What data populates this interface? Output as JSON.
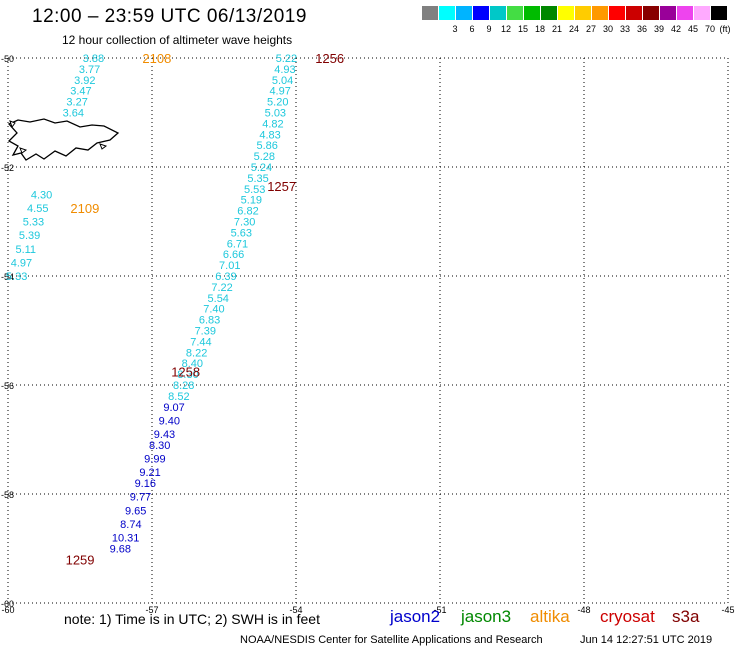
{
  "header": {
    "title": "12:00 – 23:59 UTC 06/13/2019",
    "subtitle": "12 hour collection of altimeter wave heights"
  },
  "legend": {
    "unit": "(ft)",
    "swatches": [
      {
        "label": "",
        "color": "#808080"
      },
      {
        "label": "3",
        "color": "#00ffff"
      },
      {
        "label": "6",
        "color": "#00b4ff"
      },
      {
        "label": "9",
        "color": "#0000ff"
      },
      {
        "label": "12",
        "color": "#00c8c8"
      },
      {
        "label": "15",
        "color": "#44dd44"
      },
      {
        "label": "18",
        "color": "#00bb00"
      },
      {
        "label": "21",
        "color": "#008800"
      },
      {
        "label": "24",
        "color": "#ffff00"
      },
      {
        "label": "27",
        "color": "#ffcc00"
      },
      {
        "label": "30",
        "color": "#ff9900"
      },
      {
        "label": "33",
        "color": "#ff0000"
      },
      {
        "label": "36",
        "color": "#cc0000"
      },
      {
        "label": "39",
        "color": "#880000"
      },
      {
        "label": "42",
        "color": "#990099"
      },
      {
        "label": "45",
        "color": "#ee44ee"
      },
      {
        "label": "70",
        "color": "#ffaaff"
      },
      {
        "label": "",
        "color": "#000000"
      }
    ]
  },
  "map": {
    "lat_labels": [
      "-50",
      "-52",
      "-54",
      "-56",
      "-58",
      "-60"
    ],
    "lon_labels": [
      "-60",
      "-57",
      "-54",
      "-51",
      "-48",
      "-45"
    ],
    "lat_range": [
      -60,
      -50
    ],
    "lon_range": [
      -60,
      -45
    ],
    "colors": {
      "grid": "#000000",
      "cyan": "#1ec8dc",
      "blue": "#0000c8",
      "orange": "#f08c00",
      "maroon": "#800000"
    },
    "track_labels": [
      {
        "text": "2108",
        "lat": -50.0,
        "lon": -57.2,
        "color": "orange"
      },
      {
        "text": "2109",
        "lat": -52.75,
        "lon": -58.7,
        "color": "orange"
      },
      {
        "text": "1256",
        "lat": -50.0,
        "lon": -53.6,
        "color": "maroon"
      },
      {
        "text": "1257",
        "lat": -52.35,
        "lon": -54.6,
        "color": "maroon"
      },
      {
        "text": "1258",
        "lat": -55.75,
        "lon": -56.6,
        "color": "maroon"
      },
      {
        "text": "1259",
        "lat": -59.2,
        "lon": -58.8,
        "color": "maroon"
      }
    ],
    "tracks": [
      {
        "color": "cyan",
        "points": [
          {
            "v": "3.88",
            "lat": -50.0,
            "lon": -58.22
          },
          {
            "v": "3.77",
            "lat": -50.2,
            "lon": -58.3
          },
          {
            "v": "3.92",
            "lat": -50.4,
            "lon": -58.4
          },
          {
            "v": "3.47",
            "lat": -50.6,
            "lon": -58.48
          },
          {
            "v": "3.27",
            "lat": -50.8,
            "lon": -58.56
          },
          {
            "v": "3.64",
            "lat": -51.0,
            "lon": -58.64
          }
        ]
      },
      {
        "color": "cyan",
        "points": [
          {
            "v": "4.30",
            "lat": -52.5,
            "lon": -59.3
          },
          {
            "v": "4.55",
            "lat": -52.75,
            "lon": -59.38
          },
          {
            "v": "5.33",
            "lat": -53.0,
            "lon": -59.47
          },
          {
            "v": "5.39",
            "lat": -53.25,
            "lon": -59.55
          },
          {
            "v": "5.11",
            "lat": -53.5,
            "lon": -59.63
          },
          {
            "v": "4.97",
            "lat": -53.75,
            "lon": -59.72
          },
          {
            "v": "5.33",
            "lat": -54.0,
            "lon": -59.82
          }
        ]
      },
      {
        "color": "cyan",
        "points": [
          {
            "v": "5.22",
            "lat": -50.0,
            "lon": -54.2
          },
          {
            "v": "4.93",
            "lat": -50.2,
            "lon": -54.23
          },
          {
            "v": "5.04",
            "lat": -50.4,
            "lon": -54.28
          },
          {
            "v": "4.97",
            "lat": -50.6,
            "lon": -54.33
          },
          {
            "v": "5.20",
            "lat": -50.8,
            "lon": -54.38
          },
          {
            "v": "5.03",
            "lat": -51.0,
            "lon": -54.43
          },
          {
            "v": "4.82",
            "lat": -51.2,
            "lon": -54.48
          },
          {
            "v": "4.83",
            "lat": -51.4,
            "lon": -54.54
          },
          {
            "v": "5.86",
            "lat": -51.6,
            "lon": -54.6
          },
          {
            "v": "5.28",
            "lat": -51.8,
            "lon": -54.66
          },
          {
            "v": "5.24",
            "lat": -52.0,
            "lon": -54.72
          },
          {
            "v": "5.35",
            "lat": -52.2,
            "lon": -54.79
          },
          {
            "v": "5.53",
            "lat": -52.4,
            "lon": -54.86
          },
          {
            "v": "5.19",
            "lat": -52.6,
            "lon": -54.93
          },
          {
            "v": "6.82",
            "lat": -52.8,
            "lon": -55.0
          },
          {
            "v": "7.30",
            "lat": -53.0,
            "lon": -55.07
          },
          {
            "v": "5.63",
            "lat": -53.2,
            "lon": -55.14
          },
          {
            "v": "6.71",
            "lat": -53.4,
            "lon": -55.22
          },
          {
            "v": "6.66",
            "lat": -53.6,
            "lon": -55.3
          },
          {
            "v": "7.01",
            "lat": -53.8,
            "lon": -55.38
          },
          {
            "v": "6.39",
            "lat": -54.0,
            "lon": -55.46
          },
          {
            "v": "7.22",
            "lat": -54.2,
            "lon": -55.54
          },
          {
            "v": "5.54",
            "lat": -54.4,
            "lon": -55.62
          },
          {
            "v": "7.40",
            "lat": -54.6,
            "lon": -55.71
          },
          {
            "v": "6.83",
            "lat": -54.8,
            "lon": -55.8
          },
          {
            "v": "7.39",
            "lat": -55.0,
            "lon": -55.89
          },
          {
            "v": "7.44",
            "lat": -55.2,
            "lon": -55.98
          },
          {
            "v": "8.22",
            "lat": -55.4,
            "lon": -56.07
          },
          {
            "v": "8.40",
            "lat": -55.6,
            "lon": -56.16
          },
          {
            "v": "8.30",
            "lat": -55.8,
            "lon": -56.25
          },
          {
            "v": "8.28",
            "lat": -56.0,
            "lon": -56.34
          },
          {
            "v": "8.52",
            "lat": -56.2,
            "lon": -56.44
          }
        ]
      },
      {
        "color": "blue",
        "points": [
          {
            "v": "9.07",
            "lat": -56.4,
            "lon": -56.54
          },
          {
            "v": "9.40",
            "lat": -56.65,
            "lon": -56.64
          },
          {
            "v": "9.43",
            "lat": -56.9,
            "lon": -56.74
          },
          {
            "v": "8.30",
            "lat": -57.1,
            "lon": -56.84
          },
          {
            "v": "9.99",
            "lat": -57.35,
            "lon": -56.94
          },
          {
            "v": "9.21",
            "lat": -57.6,
            "lon": -57.04
          },
          {
            "v": "9.16",
            "lat": -57.8,
            "lon": -57.14
          },
          {
            "v": "9.77",
            "lat": -58.05,
            "lon": -57.24
          },
          {
            "v": "9.65",
            "lat": -58.3,
            "lon": -57.34
          },
          {
            "v": "8.74",
            "lat": -58.55,
            "lon": -57.44
          },
          {
            "v": "10.31",
            "lat": -58.8,
            "lon": -57.55
          },
          {
            "v": "9.68",
            "lat": -59.0,
            "lon": -57.66
          }
        ]
      }
    ]
  },
  "footer": {
    "note": "note: 1) Time is in UTC; 2) SWH is in feet",
    "satellites": [
      {
        "name": "jason2",
        "color": "#0000cc"
      },
      {
        "name": "jason3",
        "color": "#008800"
      },
      {
        "name": "altika",
        "color": "#f08c00"
      },
      {
        "name": "cryosat",
        "color": "#cc0000"
      },
      {
        "name": "s3a",
        "color": "#800000"
      }
    ],
    "credit": "NOAA/NESDIS Center for Satellite Applications and Research",
    "timestamp": "Jun 14 12:27:51 UTC 2019"
  }
}
